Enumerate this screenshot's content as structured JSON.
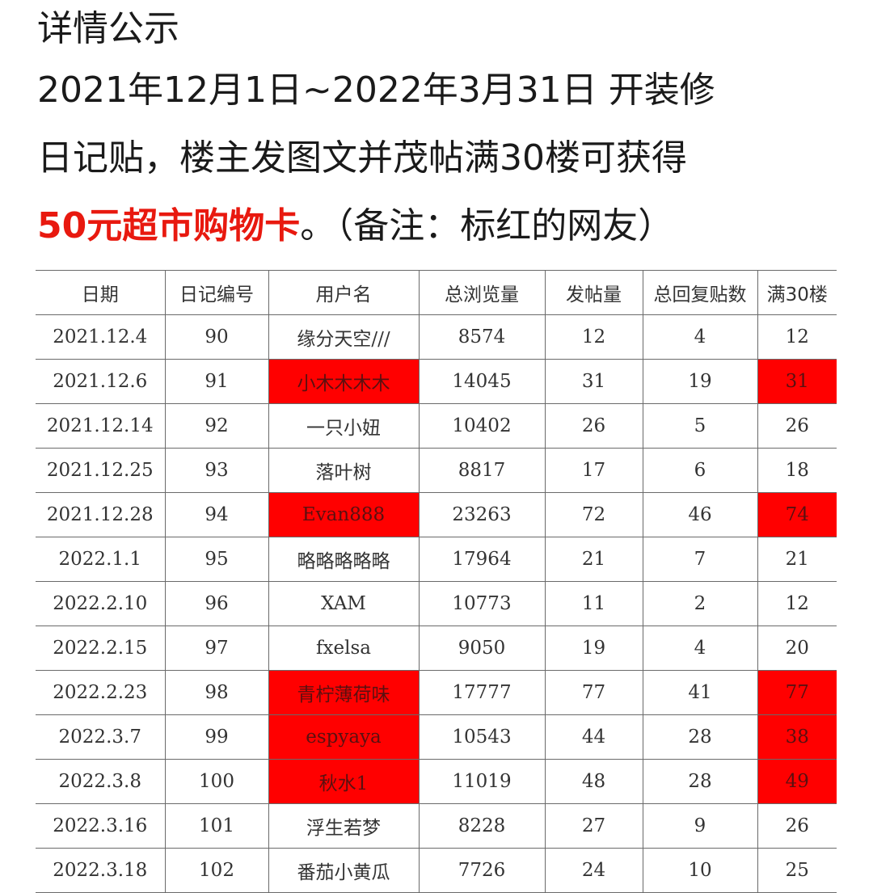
{
  "intro": {
    "title": "详情公示",
    "line2": "2021年12月1日~2022年3月31日 开装修",
    "line3": "日记贴，楼主发图文并茂帖满30楼可获得",
    "prize": "50元超市购物卡",
    "line4_rest": "。（备注：标红的网友）"
  },
  "table": {
    "headers": [
      "日期",
      "日记编号",
      "用户名",
      "总浏览量",
      "发帖量",
      "总回复贴数",
      "满30楼"
    ],
    "highlight_color": "#ff0000",
    "rows": [
      {
        "date": "2021.12.4",
        "no": "90",
        "user": "缘分天空///",
        "views": "8574",
        "posts": "12",
        "replies": "4",
        "floors": "12",
        "highlighted": false
      },
      {
        "date": "2021.12.6",
        "no": "91",
        "user": "小木木木木",
        "views": "14045",
        "posts": "31",
        "replies": "19",
        "floors": "31",
        "highlighted": true
      },
      {
        "date": "2021.12.14",
        "no": "92",
        "user": "一只小妞",
        "views": "10402",
        "posts": "26",
        "replies": "5",
        "floors": "26",
        "highlighted": false
      },
      {
        "date": "2021.12.25",
        "no": "93",
        "user": "落叶树",
        "views": "8817",
        "posts": "17",
        "replies": "6",
        "floors": "18",
        "highlighted": false
      },
      {
        "date": "2021.12.28",
        "no": "94",
        "user": "Evan888",
        "views": "23263",
        "posts": "72",
        "replies": "46",
        "floors": "74",
        "highlighted": true
      },
      {
        "date": "2022.1.1",
        "no": "95",
        "user": "略略略略略",
        "views": "17964",
        "posts": "21",
        "replies": "7",
        "floors": "21",
        "highlighted": false
      },
      {
        "date": "2022.2.10",
        "no": "96",
        "user": "XAM",
        "views": "10773",
        "posts": "11",
        "replies": "2",
        "floors": "12",
        "highlighted": false
      },
      {
        "date": "2022.2.15",
        "no": "97",
        "user": "fxelsa",
        "views": "9050",
        "posts": "19",
        "replies": "4",
        "floors": "20",
        "highlighted": false
      },
      {
        "date": "2022.2.23",
        "no": "98",
        "user": "青柠薄荷味",
        "views": "17777",
        "posts": "77",
        "replies": "41",
        "floors": "77",
        "highlighted": true
      },
      {
        "date": "2022.3.7",
        "no": "99",
        "user": "espyaya",
        "views": "10543",
        "posts": "44",
        "replies": "28",
        "floors": "38",
        "highlighted": true
      },
      {
        "date": "2022.3.8",
        "no": "100",
        "user": "秋水1",
        "views": "11019",
        "posts": "48",
        "replies": "28",
        "floors": "49",
        "highlighted": true
      },
      {
        "date": "2022.3.16",
        "no": "101",
        "user": "浮生若梦",
        "views": "8228",
        "posts": "27",
        "replies": "9",
        "floors": "26",
        "highlighted": false
      },
      {
        "date": "2022.3.18",
        "no": "102",
        "user": "番茄小黄瓜",
        "views": "7726",
        "posts": "24",
        "replies": "10",
        "floors": "25",
        "highlighted": false
      }
    ]
  }
}
